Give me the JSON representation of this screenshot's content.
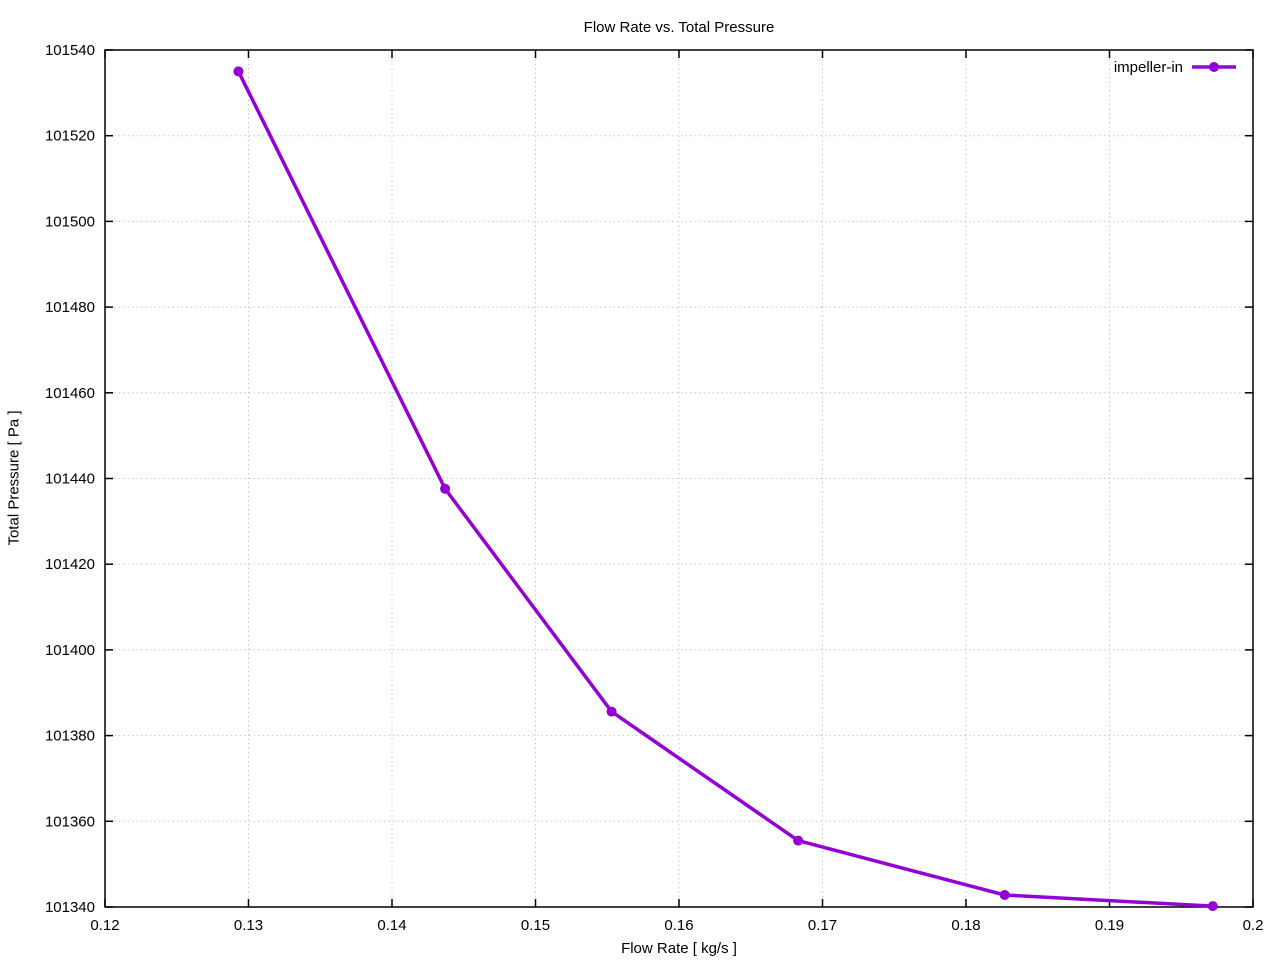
{
  "page": {
    "title": "Flow Rate vs. Total Pressure"
  },
  "chart_data": {
    "type": "line",
    "title": "Flow Rate vs. Total Pressure",
    "xlabel": "Flow Rate [ kg/s ]",
    "ylabel": "Total Pressure [ Pa ]",
    "xlim": [
      0.12,
      0.2
    ],
    "ylim": [
      101340,
      101540
    ],
    "x_ticks": [
      "0.12",
      "0.13",
      "0.14",
      "0.15",
      "0.16",
      "0.17",
      "0.18",
      "0.19",
      "0.2"
    ],
    "y_ticks": [
      "101340",
      "101360",
      "101380",
      "101400",
      "101420",
      "101440",
      "101460",
      "101480",
      "101500",
      "101520",
      "101540"
    ],
    "grid": true,
    "grid_style": "dotted",
    "legend_position": "top-right-inside",
    "colors": {
      "background": "#ffffff",
      "axis": "#000000",
      "grid": "#c8c8c8",
      "text": "#000000"
    },
    "series": [
      {
        "name": "impeller-in",
        "color": "#9400d3",
        "marker": "filled-circle",
        "points": [
          {
            "x": 0.1293,
            "y": 101535.0
          },
          {
            "x": 0.1437,
            "y": 101437.6
          },
          {
            "x": 0.1553,
            "y": 101385.6
          },
          {
            "x": 0.1683,
            "y": 101355.5
          },
          {
            "x": 0.1827,
            "y": 101342.8
          },
          {
            "x": 0.1972,
            "y": 101340.2
          }
        ]
      }
    ]
  }
}
